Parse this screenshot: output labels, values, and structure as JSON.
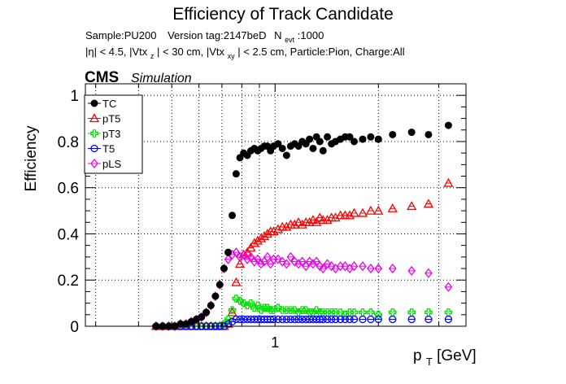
{
  "chart_data": {
    "type": "scatter",
    "title": "Efficiency of Track Candidate",
    "info_line1": {
      "sample": "Sample:PU200",
      "version": "Version tag:2147beD",
      "nevt_main": "N",
      "nevt_sub": "evt",
      "nevt_value": ":1000"
    },
    "info_line2": {
      "p1": "|η| < 4.5, |Vtx",
      "s1": "z",
      "p2": "| < 30 cm, |Vtx",
      "s2": "xy",
      "p3": "| < 2.5 cm, Particle:Pion, Charge:All"
    },
    "cms_label": "CMS",
    "sim_label": "Simulation",
    "xlabel_main": "p",
    "xlabel_sub": "T",
    "xlabel_unit": " [GeV]",
    "ylabel": "Efficiency",
    "x_scale": "log",
    "xlim": [
      0.28,
      3.6
    ],
    "ylim": [
      0,
      1.05
    ],
    "y_ticks": [
      "0",
      "0.2",
      "0.4",
      "0.6",
      "0.8",
      "1"
    ],
    "x_tick_labels": [
      {
        "value": 1,
        "label": "1"
      }
    ],
    "grid": true,
    "legend_position": "top-left",
    "series": [
      {
        "name": "TC",
        "color": "#000000",
        "marker": "filled-circle",
        "x": [
          0.45,
          0.47,
          0.49,
          0.51,
          0.53,
          0.55,
          0.57,
          0.59,
          0.61,
          0.63,
          0.65,
          0.67,
          0.69,
          0.71,
          0.73,
          0.75,
          0.77,
          0.79,
          0.81,
          0.83,
          0.85,
          0.87,
          0.89,
          0.91,
          0.93,
          0.95,
          0.97,
          0.99,
          1.02,
          1.05,
          1.08,
          1.11,
          1.14,
          1.17,
          1.2,
          1.23,
          1.26,
          1.29,
          1.32,
          1.35,
          1.38,
          1.42,
          1.46,
          1.5,
          1.55,
          1.6,
          1.65,
          1.7,
          1.8,
          1.9,
          2.0,
          2.2,
          2.5,
          2.8,
          3.2
        ],
        "y": [
          0.0,
          0.0,
          0.0,
          0.0,
          0.01,
          0.01,
          0.02,
          0.03,
          0.04,
          0.06,
          0.09,
          0.13,
          0.18,
          0.25,
          0.32,
          0.48,
          0.66,
          0.73,
          0.75,
          0.74,
          0.76,
          0.77,
          0.76,
          0.77,
          0.78,
          0.78,
          0.76,
          0.78,
          0.79,
          0.77,
          0.74,
          0.78,
          0.79,
          0.78,
          0.8,
          0.79,
          0.81,
          0.77,
          0.82,
          0.8,
          0.76,
          0.82,
          0.79,
          0.8,
          0.81,
          0.82,
          0.82,
          0.8,
          0.81,
          0.82,
          0.81,
          0.83,
          0.84,
          0.83,
          0.87
        ]
      },
      {
        "name": "pT5",
        "color": "#ff0000",
        "marker": "open-triangle",
        "x": [
          0.45,
          0.47,
          0.49,
          0.51,
          0.53,
          0.55,
          0.57,
          0.59,
          0.61,
          0.63,
          0.65,
          0.67,
          0.69,
          0.71,
          0.73,
          0.75,
          0.77,
          0.79,
          0.81,
          0.83,
          0.85,
          0.87,
          0.89,
          0.91,
          0.93,
          0.95,
          0.97,
          0.99,
          1.02,
          1.05,
          1.08,
          1.11,
          1.14,
          1.17,
          1.2,
          1.23,
          1.26,
          1.29,
          1.32,
          1.35,
          1.38,
          1.42,
          1.46,
          1.5,
          1.55,
          1.6,
          1.65,
          1.7,
          1.8,
          1.9,
          2.0,
          2.2,
          2.5,
          2.8,
          3.2
        ],
        "y": [
          0,
          0,
          0,
          0,
          0,
          0,
          0,
          0,
          0,
          0,
          0,
          0,
          0,
          0,
          0.01,
          0.06,
          0.19,
          0.27,
          0.31,
          0.32,
          0.34,
          0.36,
          0.37,
          0.38,
          0.39,
          0.4,
          0.41,
          0.41,
          0.42,
          0.43,
          0.43,
          0.44,
          0.44,
          0.45,
          0.44,
          0.45,
          0.45,
          0.46,
          0.45,
          0.47,
          0.46,
          0.46,
          0.47,
          0.47,
          0.48,
          0.48,
          0.48,
          0.49,
          0.49,
          0.5,
          0.5,
          0.51,
          0.52,
          0.53,
          0.62
        ]
      },
      {
        "name": "pT3",
        "color": "#00dd00",
        "marker": "open-cross",
        "x": [
          0.45,
          0.47,
          0.49,
          0.51,
          0.53,
          0.55,
          0.57,
          0.59,
          0.61,
          0.63,
          0.65,
          0.67,
          0.69,
          0.71,
          0.73,
          0.75,
          0.77,
          0.79,
          0.81,
          0.83,
          0.85,
          0.87,
          0.89,
          0.91,
          0.93,
          0.95,
          0.97,
          0.99,
          1.02,
          1.05,
          1.08,
          1.11,
          1.14,
          1.17,
          1.2,
          1.23,
          1.26,
          1.29,
          1.32,
          1.35,
          1.38,
          1.42,
          1.46,
          1.5,
          1.55,
          1.6,
          1.65,
          1.7,
          1.8,
          1.9,
          2.0,
          2.2,
          2.5,
          2.8,
          3.2
        ],
        "y": [
          0,
          0,
          0,
          0,
          0,
          0,
          0,
          0,
          0,
          0,
          0,
          0,
          0,
          0.01,
          0.03,
          0.07,
          0.12,
          0.11,
          0.1,
          0.09,
          0.1,
          0.08,
          0.09,
          0.07,
          0.08,
          0.08,
          0.07,
          0.07,
          0.08,
          0.07,
          0.07,
          0.07,
          0.07,
          0.06,
          0.07,
          0.07,
          0.06,
          0.06,
          0.07,
          0.06,
          0.06,
          0.06,
          0.06,
          0.06,
          0.06,
          0.05,
          0.06,
          0.06,
          0.06,
          0.06,
          0.05,
          0.06,
          0.06,
          0.06,
          0.06
        ]
      },
      {
        "name": "T5",
        "color": "#0000ff",
        "marker": "open-circle",
        "x": [
          0.45,
          0.47,
          0.49,
          0.51,
          0.53,
          0.55,
          0.57,
          0.59,
          0.61,
          0.63,
          0.65,
          0.67,
          0.69,
          0.71,
          0.73,
          0.75,
          0.77,
          0.79,
          0.81,
          0.83,
          0.85,
          0.87,
          0.89,
          0.91,
          0.93,
          0.95,
          0.97,
          0.99,
          1.02,
          1.05,
          1.08,
          1.11,
          1.14,
          1.17,
          1.2,
          1.23,
          1.26,
          1.29,
          1.32,
          1.35,
          1.38,
          1.42,
          1.46,
          1.5,
          1.55,
          1.6,
          1.65,
          1.7,
          1.8,
          1.9,
          2.0,
          2.2,
          2.5,
          2.8,
          3.2
        ],
        "y": [
          0,
          0,
          0,
          0,
          0,
          0,
          0,
          0,
          0,
          0,
          0,
          0,
          0,
          0,
          0.01,
          0.02,
          0.03,
          0.03,
          0.03,
          0.03,
          0.03,
          0.03,
          0.03,
          0.03,
          0.03,
          0.03,
          0.03,
          0.03,
          0.03,
          0.03,
          0.03,
          0.03,
          0.03,
          0.03,
          0.03,
          0.03,
          0.03,
          0.03,
          0.03,
          0.03,
          0.03,
          0.03,
          0.03,
          0.03,
          0.03,
          0.03,
          0.03,
          0.03,
          0.03,
          0.03,
          0.03,
          0.03,
          0.03,
          0.03,
          0.03
        ]
      },
      {
        "name": "pLS",
        "color": "#ee00ee",
        "marker": "open-diamond",
        "x": [
          0.45,
          0.47,
          0.49,
          0.51,
          0.53,
          0.55,
          0.57,
          0.59,
          0.61,
          0.63,
          0.65,
          0.67,
          0.69,
          0.71,
          0.73,
          0.75,
          0.77,
          0.79,
          0.81,
          0.83,
          0.85,
          0.87,
          0.89,
          0.91,
          0.93,
          0.95,
          0.97,
          0.99,
          1.02,
          1.05,
          1.08,
          1.11,
          1.14,
          1.17,
          1.2,
          1.23,
          1.26,
          1.29,
          1.32,
          1.35,
          1.38,
          1.42,
          1.46,
          1.5,
          1.55,
          1.6,
          1.65,
          1.7,
          1.8,
          1.9,
          2.0,
          2.2,
          2.5,
          2.8,
          3.2
        ],
        "y": [
          0.0,
          0.0,
          0.0,
          0.0,
          0.01,
          0.01,
          0.02,
          0.03,
          0.04,
          0.06,
          0.09,
          0.13,
          0.18,
          0.25,
          0.29,
          0.31,
          0.32,
          0.3,
          0.31,
          0.29,
          0.3,
          0.28,
          0.29,
          0.27,
          0.28,
          0.3,
          0.27,
          0.29,
          0.29,
          0.28,
          0.27,
          0.3,
          0.28,
          0.27,
          0.28,
          0.26,
          0.28,
          0.27,
          0.28,
          0.26,
          0.25,
          0.27,
          0.26,
          0.25,
          0.26,
          0.26,
          0.25,
          0.26,
          0.26,
          0.25,
          0.25,
          0.25,
          0.24,
          0.23,
          0.17
        ]
      }
    ]
  }
}
